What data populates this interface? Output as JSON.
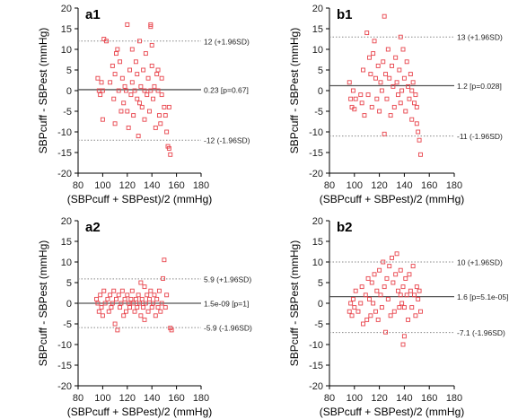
{
  "chart_data": [
    {
      "id": "a1",
      "panel_label": "a1",
      "type": "scatter",
      "xlabel": "(SBPcuff + SBPest)/2 (mmHg)",
      "ylabel": "SBPcuff - SBPest (mmHg)",
      "xlim": [
        80,
        180
      ],
      "ylim": [
        -20,
        20
      ],
      "xticks": [
        80,
        100,
        120,
        140,
        160,
        180
      ],
      "yticks": [
        -20,
        -15,
        -10,
        -5,
        0,
        5,
        10,
        15,
        20
      ],
      "lines": [
        {
          "y": 12,
          "style": "dotted",
          "label": "12 (+1.96SD)"
        },
        {
          "y": 0.23,
          "style": "solid",
          "label": "0.23 [p=0.67]"
        },
        {
          "y": -12,
          "style": "dotted",
          "label": "-12 (-1.96SD)"
        }
      ],
      "points": [
        [
          96,
          3
        ],
        [
          97,
          0
        ],
        [
          98,
          -1
        ],
        [
          99,
          2
        ],
        [
          100,
          0
        ],
        [
          100,
          -7
        ],
        [
          101,
          12.5
        ],
        [
          103,
          12
        ],
        [
          106,
          2
        ],
        [
          108,
          6
        ],
        [
          109,
          -2
        ],
        [
          110,
          4
        ],
        [
          110,
          -8
        ],
        [
          111,
          9
        ],
        [
          112,
          10
        ],
        [
          113,
          0
        ],
        [
          114,
          7
        ],
        [
          115,
          -5
        ],
        [
          116,
          3
        ],
        [
          117,
          -3
        ],
        [
          118,
          1
        ],
        [
          119,
          0
        ],
        [
          120,
          16
        ],
        [
          120,
          -5
        ],
        [
          121,
          -9
        ],
        [
          122,
          5
        ],
        [
          123,
          -1
        ],
        [
          124,
          10
        ],
        [
          124,
          2
        ],
        [
          125,
          -6
        ],
        [
          126,
          0
        ],
        [
          127,
          7
        ],
        [
          128,
          -2
        ],
        [
          128,
          4
        ],
        [
          129,
          -11
        ],
        [
          130,
          12
        ],
        [
          130,
          -3
        ],
        [
          131,
          1
        ],
        [
          132,
          -4
        ],
        [
          133,
          5
        ],
        [
          134,
          0
        ],
        [
          134,
          -7
        ],
        [
          135,
          9
        ],
        [
          136,
          -1
        ],
        [
          137,
          3
        ],
        [
          138,
          -5
        ],
        [
          139,
          16
        ],
        [
          139,
          15.5
        ],
        [
          139,
          0
        ],
        [
          140,
          6
        ],
        [
          140,
          11
        ],
        [
          141,
          -2
        ],
        [
          142,
          1
        ],
        [
          143,
          -9
        ],
        [
          144,
          4
        ],
        [
          145,
          0
        ],
        [
          145,
          5
        ],
        [
          146,
          -6
        ],
        [
          147,
          -8
        ],
        [
          148,
          3
        ],
        [
          148,
          -1
        ],
        [
          150,
          -4
        ],
        [
          151,
          -6
        ],
        [
          152,
          -10
        ],
        [
          153,
          -13.5
        ],
        [
          154,
          -14
        ],
        [
          155,
          -15.5
        ],
        [
          154,
          -4
        ]
      ]
    },
    {
      "id": "b1",
      "panel_label": "b1",
      "type": "scatter",
      "xlabel": "(SBPcuff + SBPest)/2 (mmHg)",
      "ylabel": "SBPcuff - SBPest (mmHg)",
      "xlim": [
        80,
        180
      ],
      "ylim": [
        -20,
        20
      ],
      "xticks": [
        80,
        100,
        120,
        140,
        160,
        180
      ],
      "yticks": [
        -20,
        -15,
        -10,
        -5,
        0,
        5,
        10,
        15,
        20
      ],
      "lines": [
        {
          "y": 13,
          "style": "dotted",
          "label": "13 (+1.96SD)"
        },
        {
          "y": 1.2,
          "style": "solid",
          "label": "1.2 [p=0.028]"
        },
        {
          "y": -11,
          "style": "dotted",
          "label": "-11 (-1.96SD)"
        }
      ],
      "points": [
        [
          96,
          2
        ],
        [
          97,
          -2
        ],
        [
          98,
          -4
        ],
        [
          99,
          0
        ],
        [
          100,
          -4.5
        ],
        [
          101,
          -2
        ],
        [
          105,
          -1
        ],
        [
          106,
          -3
        ],
        [
          107,
          5
        ],
        [
          108,
          -6
        ],
        [
          110,
          14
        ],
        [
          111,
          -1
        ],
        [
          112,
          8
        ],
        [
          113,
          4
        ],
        [
          114,
          -4
        ],
        [
          115,
          9
        ],
        [
          116,
          12
        ],
        [
          117,
          3
        ],
        [
          118,
          -2
        ],
        [
          119,
          6
        ],
        [
          120,
          -5
        ],
        [
          121,
          2
        ],
        [
          122,
          0
        ],
        [
          123,
          7
        ],
        [
          124,
          -10.5
        ],
        [
          124,
          18
        ],
        [
          125,
          4
        ],
        [
          126,
          -2
        ],
        [
          127,
          10
        ],
        [
          128,
          3
        ],
        [
          129,
          -6
        ],
        [
          130,
          6
        ],
        [
          131,
          1
        ],
        [
          132,
          -4
        ],
        [
          133,
          8
        ],
        [
          134,
          2
        ],
        [
          135,
          -1
        ],
        [
          136,
          5
        ],
        [
          137,
          -3
        ],
        [
          137,
          13
        ],
        [
          138,
          0
        ],
        [
          139,
          10
        ],
        [
          140,
          3
        ],
        [
          141,
          -5
        ],
        [
          142,
          7
        ],
        [
          143,
          1
        ],
        [
          144,
          -2
        ],
        [
          145,
          4
        ],
        [
          146,
          -7
        ],
        [
          147,
          2
        ],
        [
          148,
          -3
        ],
        [
          149,
          -1
        ],
        [
          150,
          -8
        ],
        [
          151,
          -10
        ],
        [
          152,
          -12
        ],
        [
          153,
          -15.5
        ],
        [
          150,
          -4
        ],
        [
          146,
          0
        ]
      ]
    },
    {
      "id": "a2",
      "panel_label": "a2",
      "type": "scatter",
      "xlabel": "(SBPcuff + SBPest)/2 (mmHg)",
      "ylabel": "SBPcuff - SBPest (mmHg)",
      "xlim": [
        80,
        180
      ],
      "ylim": [
        -20,
        20
      ],
      "xticks": [
        80,
        100,
        120,
        140,
        160,
        180
      ],
      "yticks": [
        -20,
        -15,
        -10,
        -5,
        0,
        5,
        10,
        15,
        20
      ],
      "lines": [
        {
          "y": 5.9,
          "style": "dotted",
          "label": "5.9 (+1.96SD)"
        },
        {
          "y": 1.5e-09,
          "style": "solid",
          "label": "1.5e-09 [p=1]"
        },
        {
          "y": -5.9,
          "style": "dotted",
          "label": "-5.9 (-1.96SD)"
        }
      ],
      "points": [
        [
          95,
          1
        ],
        [
          96,
          0
        ],
        [
          97,
          -2
        ],
        [
          98,
          2
        ],
        [
          99,
          -1
        ],
        [
          100,
          -3
        ],
        [
          101,
          3
        ],
        [
          102,
          0
        ],
        [
          104,
          1
        ],
        [
          105,
          -2
        ],
        [
          106,
          2
        ],
        [
          107,
          -1
        ],
        [
          108,
          0
        ],
        [
          109,
          3
        ],
        [
          110,
          -5
        ],
        [
          111,
          1
        ],
        [
          112,
          -6.5
        ],
        [
          113,
          2
        ],
        [
          114,
          -1
        ],
        [
          115,
          0
        ],
        [
          116,
          3
        ],
        [
          117,
          -3
        ],
        [
          118,
          1
        ],
        [
          119,
          -2
        ],
        [
          120,
          2
        ],
        [
          121,
          0
        ],
        [
          122,
          -1
        ],
        [
          123,
          1
        ],
        [
          124,
          3
        ],
        [
          125,
          0
        ],
        [
          126,
          -2
        ],
        [
          127,
          1
        ],
        [
          128,
          -1
        ],
        [
          129,
          2
        ],
        [
          130,
          0
        ],
        [
          131,
          5
        ],
        [
          131,
          -3
        ],
        [
          132,
          1
        ],
        [
          133,
          -1
        ],
        [
          134,
          4
        ],
        [
          134,
          -4
        ],
        [
          135,
          0
        ],
        [
          136,
          2
        ],
        [
          137,
          -2
        ],
        [
          138,
          1
        ],
        [
          139,
          3
        ],
        [
          140,
          -1
        ],
        [
          141,
          0
        ],
        [
          142,
          2
        ],
        [
          143,
          -3
        ],
        [
          144,
          1
        ],
        [
          145,
          -1
        ],
        [
          146,
          3
        ],
        [
          147,
          -2
        ],
        [
          148,
          0
        ],
        [
          149,
          6
        ],
        [
          150,
          10.5
        ],
        [
          151,
          -1
        ],
        [
          152,
          2
        ],
        [
          155,
          -6
        ],
        [
          156,
          -6.5
        ]
      ]
    },
    {
      "id": "b2",
      "panel_label": "b2",
      "type": "scatter",
      "xlabel": "(SBPcuff + SBPest)/2 (mmHg)",
      "ylabel": "SBPcuff - SBPest (mmHg)",
      "xlim": [
        80,
        180
      ],
      "ylim": [
        -20,
        20
      ],
      "xticks": [
        80,
        100,
        120,
        140,
        160,
        180
      ],
      "yticks": [
        -20,
        -15,
        -10,
        -5,
        0,
        5,
        10,
        15,
        20
      ],
      "lines": [
        {
          "y": 10,
          "style": "dotted",
          "label": "10 (+1.96SD)"
        },
        {
          "y": 1.6,
          "style": "solid",
          "label": "1.6 [p=5.1e-05]"
        },
        {
          "y": -7.1,
          "style": "dotted",
          "label": "-7.1 (-1.96SD)"
        }
      ],
      "points": [
        [
          96,
          -2
        ],
        [
          97,
          0
        ],
        [
          98,
          -3
        ],
        [
          99,
          1
        ],
        [
          100,
          -1
        ],
        [
          101,
          3
        ],
        [
          103,
          -2
        ],
        [
          105,
          0
        ],
        [
          106,
          4
        ],
        [
          107,
          -5
        ],
        [
          109,
          2
        ],
        [
          110,
          -4
        ],
        [
          111,
          6
        ],
        [
          112,
          1
        ],
        [
          113,
          -3
        ],
        [
          114,
          5
        ],
        [
          115,
          0
        ],
        [
          116,
          7
        ],
        [
          117,
          -2
        ],
        [
          118,
          3
        ],
        [
          119,
          -4
        ],
        [
          120,
          8
        ],
        [
          121,
          2
        ],
        [
          122,
          -1
        ],
        [
          123,
          10
        ],
        [
          124,
          4
        ],
        [
          125,
          -7
        ],
        [
          126,
          6
        ],
        [
          127,
          1
        ],
        [
          128,
          9
        ],
        [
          129,
          -3
        ],
        [
          130,
          11
        ],
        [
          131,
          5
        ],
        [
          132,
          -2
        ],
        [
          133,
          7
        ],
        [
          134,
          12
        ],
        [
          135,
          3
        ],
        [
          136,
          -1
        ],
        [
          137,
          8
        ],
        [
          138,
          0
        ],
        [
          139,
          -10
        ],
        [
          139,
          4
        ],
        [
          140,
          -8
        ],
        [
          141,
          6
        ],
        [
          142,
          2
        ],
        [
          143,
          -4
        ],
        [
          144,
          7
        ],
        [
          145,
          3
        ],
        [
          146,
          -1
        ],
        [
          147,
          9
        ],
        [
          148,
          2
        ],
        [
          149,
          -3
        ],
        [
          150,
          4
        ],
        [
          151,
          1
        ],
        [
          152,
          3
        ],
        [
          153,
          -2
        ],
        [
          140,
          -1
        ],
        [
          137,
          2
        ]
      ]
    }
  ]
}
